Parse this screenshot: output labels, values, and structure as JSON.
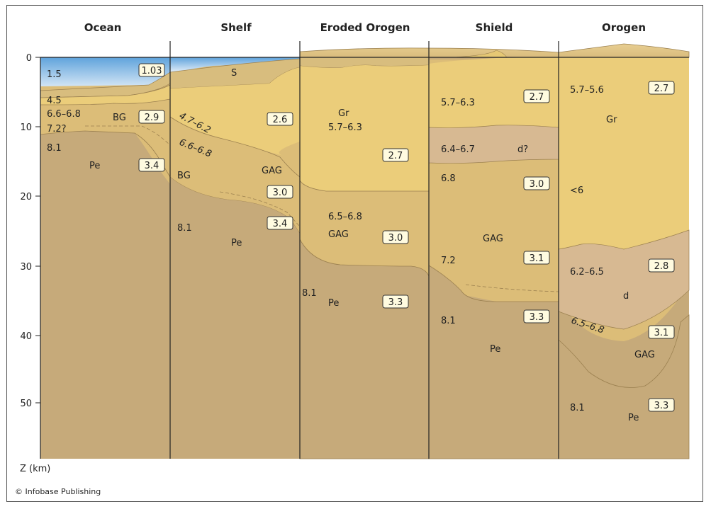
{
  "columns": [
    "Ocean",
    "Shelf",
    "Eroded Orogen",
    "Shield",
    "Orogen"
  ],
  "axis": {
    "label": "Z (km)",
    "ticks": [
      "0",
      "10",
      "20",
      "30",
      "40",
      "50"
    ]
  },
  "credit": "© Infobase Publishing",
  "colors": {
    "water": "#7fb6e4",
    "sediment": "#d8bd7e",
    "granite": "#ebcd7a",
    "gag": "#dcbd78",
    "diorite": "#d7b992",
    "peridotite": "#c6aa7a",
    "box": "#fffbe0"
  },
  "ocean": {
    "velocities": [
      "1.5",
      "4.5",
      "6.6–6.8",
      "7.2?",
      "8.1"
    ],
    "rocks": [
      "BG",
      "Pe"
    ],
    "densities": [
      "1.03",
      "2.9",
      "3.4"
    ]
  },
  "shelf": {
    "velocities": [
      "4.7–6.2",
      "6.6–6.8",
      "8.1"
    ],
    "rocks": [
      "S",
      "BG",
      "GAG",
      "Pe"
    ],
    "densities": [
      "2.6",
      "3.0",
      "3.4"
    ]
  },
  "eroded_orogen": {
    "velocities": [
      "5.7–6.3",
      "6.5–6.8",
      "8.1"
    ],
    "rocks": [
      "Gr",
      "GAG",
      "Pe"
    ],
    "densities": [
      "2.7",
      "3.0",
      "3.3"
    ]
  },
  "shield": {
    "velocities": [
      "5.7–6.3",
      "6.4–6.7",
      "6.8",
      "7.2",
      "8.1"
    ],
    "rocks": [
      "d?",
      "GAG",
      "Pe"
    ],
    "densities": [
      "2.7",
      "3.0",
      "3.1",
      "3.3"
    ]
  },
  "orogen": {
    "velocities": [
      "5.7–5.6",
      "<6",
      "6.2–6.5",
      "6.5–6.8",
      "8.1"
    ],
    "rocks": [
      "Gr",
      "d",
      "GAG",
      "Pe"
    ],
    "densities": [
      "2.7",
      "2.8",
      "3.1",
      "3.3"
    ]
  }
}
